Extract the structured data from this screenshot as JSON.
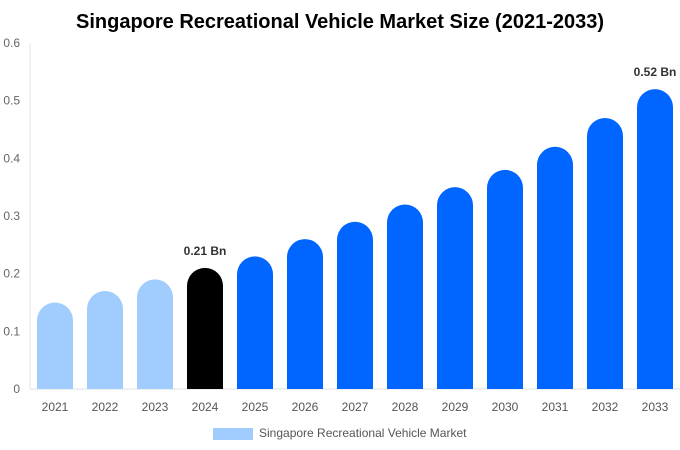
{
  "chart_data": {
    "type": "bar",
    "title": "Singapore Recreational Vehicle Market Size (2021-2033)",
    "categories": [
      "2021",
      "2022",
      "2023",
      "2024",
      "2025",
      "2026",
      "2027",
      "2028",
      "2029",
      "2030",
      "2031",
      "2032",
      "2033"
    ],
    "series": [
      {
        "name": "Singapore Recreational Vehicle Market",
        "values": [
          0.15,
          0.17,
          0.19,
          0.21,
          0.23,
          0.26,
          0.29,
          0.32,
          0.35,
          0.38,
          0.42,
          0.47,
          0.52
        ]
      }
    ],
    "bar_colors": [
      "#a0cdfd",
      "#a0cdfd",
      "#a0cdfd",
      "#000000",
      "#0066ff",
      "#0066ff",
      "#0066ff",
      "#0066ff",
      "#0066ff",
      "#0066ff",
      "#0066ff",
      "#0066ff",
      "#0066ff"
    ],
    "data_labels": [
      {
        "category": "2024",
        "text": "0.21 Bn"
      },
      {
        "category": "2033",
        "text": "0.52 Bn"
      }
    ],
    "yticks": [
      "0",
      "0.1",
      "0.2",
      "0.3",
      "0.4",
      "0.5",
      "0.6"
    ],
    "ylim": [
      0,
      0.6
    ],
    "xlabel": "",
    "ylabel": "",
    "grid": false,
    "legend_position": "bottom",
    "legend_color": "#a0cdfd"
  }
}
